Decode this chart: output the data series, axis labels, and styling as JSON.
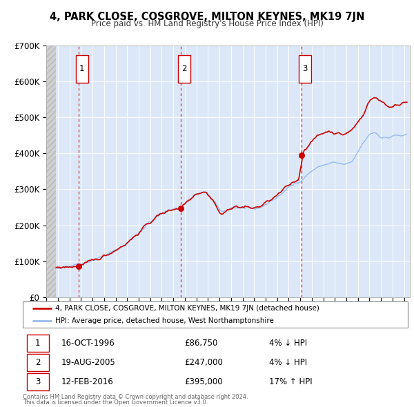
{
  "title": "4, PARK CLOSE, COSGROVE, MILTON KEYNES, MK19 7JN",
  "subtitle": "Price paid vs. HM Land Registry's House Price Index (HPI)",
  "ylim": [
    0,
    700000
  ],
  "yticks": [
    0,
    100000,
    200000,
    300000,
    400000,
    500000,
    600000,
    700000
  ],
  "ytick_labels": [
    "£0",
    "£100K",
    "£200K",
    "£300K",
    "£400K",
    "£500K",
    "£600K",
    "£700K"
  ],
  "xmin": 1994.0,
  "xmax": 2025.5,
  "sale_color": "#cc0000",
  "hpi_color": "#99bbee",
  "sale_label": "4, PARK CLOSE, COSGROVE, MILTON KEYNES, MK19 7JN (detached house)",
  "hpi_label": "HPI: Average price, detached house, West Northamptonshire",
  "transactions": [
    {
      "num": 1,
      "date": "16-OCT-1996",
      "price": 86750,
      "price_str": "£86,750",
      "pct": "4%",
      "dir": "↓",
      "year": 1996.79
    },
    {
      "num": 2,
      "date": "19-AUG-2005",
      "price": 247000,
      "price_str": "£247,000",
      "pct": "4%",
      "dir": "↓",
      "year": 2005.63
    },
    {
      "num": 3,
      "date": "12-FEB-2016",
      "price": 395000,
      "price_str": "£395,000",
      "pct": "17%",
      "dir": "↑",
      "year": 2016.12
    }
  ],
  "footer1": "Contains HM Land Registry data © Crown copyright and database right 2024.",
  "footer2": "This data is licensed under the Open Government Licence v3.0.",
  "plot_bg_color": "#dce8f8",
  "hatch_color": "#c8c8c8"
}
